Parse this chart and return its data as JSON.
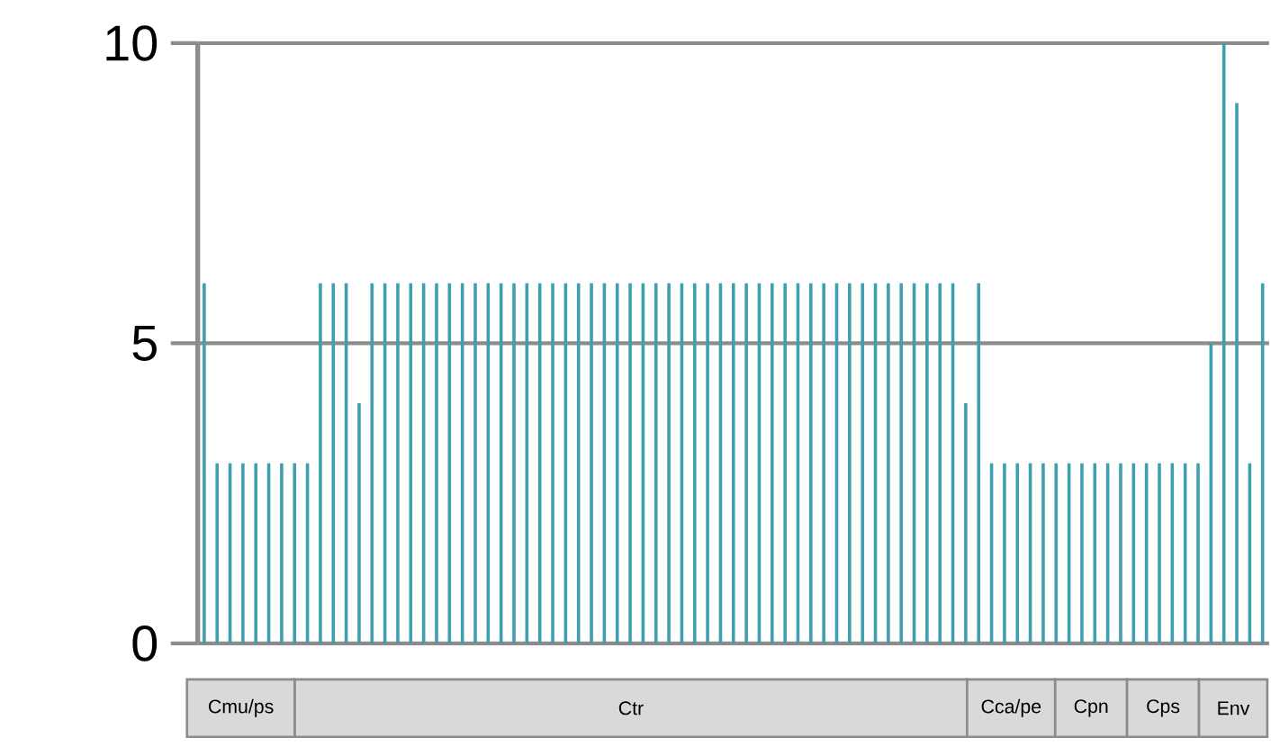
{
  "chart_data": {
    "type": "bar",
    "categories": [
      null,
      null,
      null,
      null,
      null,
      null,
      null,
      null,
      null,
      null,
      null,
      null,
      null,
      null,
      null,
      null,
      null,
      null,
      null,
      null,
      null,
      null,
      null,
      null,
      null,
      null,
      null,
      null,
      null,
      null,
      null,
      null,
      null,
      null,
      null,
      null,
      null,
      null,
      null,
      null,
      null,
      null,
      null,
      null,
      null,
      null,
      null,
      null,
      null,
      null,
      null,
      null,
      null,
      null,
      null,
      null,
      null,
      null,
      null,
      null,
      null,
      null,
      null,
      null,
      null,
      null,
      null,
      null,
      null,
      null,
      null,
      null,
      null,
      null,
      null,
      null,
      null,
      null,
      null,
      null,
      null,
      null,
      null
    ],
    "values": [
      6,
      3,
      3,
      3,
      3,
      3,
      3,
      3,
      3,
      6,
      6,
      6,
      4,
      6,
      6,
      6,
      6,
      6,
      6,
      6,
      6,
      6,
      6,
      6,
      6,
      6,
      6,
      6,
      6,
      6,
      6,
      6,
      6,
      6,
      6,
      6,
      6,
      6,
      6,
      6,
      6,
      6,
      6,
      6,
      6,
      6,
      6,
      6,
      6,
      6,
      6,
      6,
      6,
      6,
      6,
      6,
      6,
      6,
      6,
      4,
      6,
      3,
      3,
      3,
      3,
      3,
      3,
      3,
      3,
      3,
      3,
      3,
      3,
      3,
      3,
      3,
      3,
      3,
      5,
      10,
      9,
      3,
      6
    ],
    "color": "#3f9fae",
    "ylim": [
      0,
      10
    ],
    "yticks": [
      0,
      5,
      10
    ],
    "grid": "y",
    "annotations": [
      "Cmu/ps",
      "Ctr",
      "Cca/pe",
      "Cpn",
      "Cps",
      "Env"
    ]
  }
}
